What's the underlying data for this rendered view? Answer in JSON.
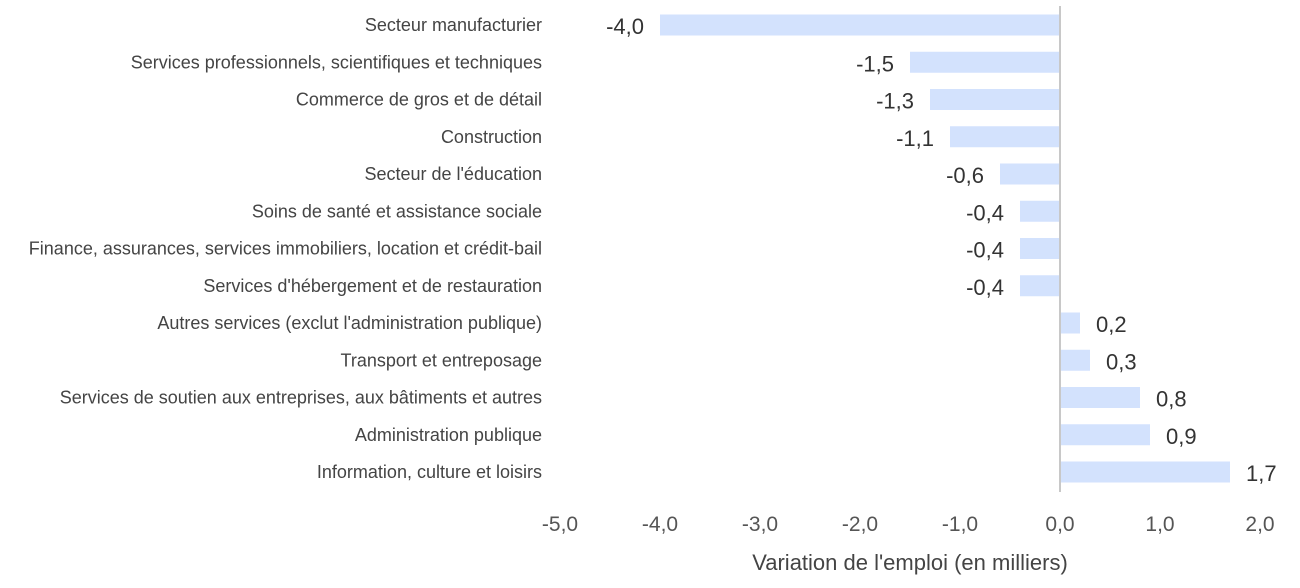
{
  "chart_data": {
    "type": "bar",
    "orientation": "horizontal",
    "categories": [
      "Secteur manufacturier",
      "Services professionnels, scientifiques et techniques",
      "Commerce de gros et de détail",
      "Construction",
      "Secteur de l'éducation",
      "Soins de santé et assistance sociale",
      "Finance, assurances, services immobiliers, location et crédit-bail",
      "Services d'hébergement et de restauration",
      "Autres services (exclut l'administration publique)",
      "Transport et entreposage",
      "Services de soutien aux entreprises, aux bâtiments et autres",
      "Administration publique",
      "Information, culture et loisirs"
    ],
    "values": [
      -4.0,
      -1.5,
      -1.3,
      -1.1,
      -0.6,
      -0.4,
      -0.4,
      -0.4,
      0.2,
      0.3,
      0.8,
      0.9,
      1.7
    ],
    "value_labels": [
      "-4,0",
      "-1,5",
      "-1,3",
      "-1,1",
      "-0,6",
      "-0,4",
      "-0,4",
      "-0,4",
      "0,2",
      "0,3",
      "0,8",
      "0,9",
      "1,7"
    ],
    "xlabel": "Variation de l'emploi (en milliers)",
    "xlim": [
      -5.0,
      2.0
    ],
    "xticks": [
      -5.0,
      -4.0,
      -3.0,
      -2.0,
      -1.0,
      0.0,
      1.0,
      2.0
    ],
    "xtick_labels": [
      "-5,0",
      "-4,0",
      "-3,0",
      "-2,0",
      "-1,0",
      "0,0",
      "1,0",
      "2,0"
    ],
    "grid": false,
    "legend": "none",
    "colors": {
      "bar": "#d3e2fd",
      "zero_line": "#c8c8c8"
    }
  }
}
